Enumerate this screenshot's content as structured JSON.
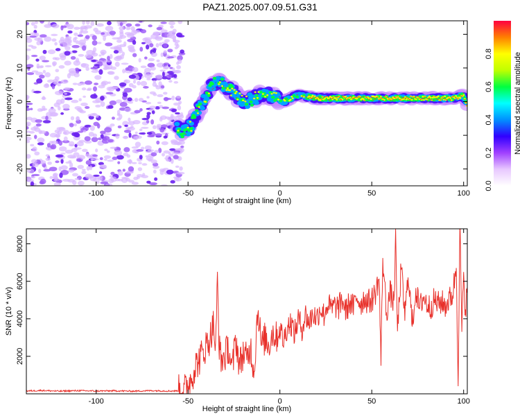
{
  "title": "PAZ1.2025.007.09.51.G31",
  "chart_data": [
    {
      "type": "heatmap",
      "xlabel": "Height of straight line (km)",
      "ylabel": "Frequency (Hz)",
      "xlim": [
        -138,
        102
      ],
      "ylim": [
        -25,
        24
      ],
      "xticks": [
        -100,
        -50,
        0,
        50,
        100
      ],
      "yticks": [
        -20,
        -10,
        0,
        10,
        20
      ],
      "colorbar": {
        "label": "Normalized spectral amplitude",
        "range": [
          0,
          1
        ],
        "ticks": [
          0.0,
          0.2,
          0.4,
          0.6,
          0.8
        ],
        "tick_labels": [
          "0.0",
          "0.2",
          "0.4",
          "0.6",
          "0.8"
        ],
        "colors": [
          "#ffffff",
          "#e8c8ff",
          "#a040ff",
          "#3000ff",
          "#0090ff",
          "#00ffff",
          "#00ff40",
          "#c0ff00",
          "#ffff00",
          "#ff8000",
          "#ff0040"
        ]
      },
      "ridge": {
        "x": [
          -56,
          -52,
          -48,
          -45,
          -42,
          -38,
          -34,
          -30,
          -26,
          -22,
          -18,
          -14,
          -10,
          -6,
          -2,
          2,
          6,
          10,
          20,
          30,
          40,
          50,
          60,
          70,
          80,
          90,
          95,
          100,
          102
        ],
        "y": [
          -8,
          -9,
          -7,
          -3,
          0,
          4,
          6,
          5,
          3,
          1,
          0,
          1,
          2,
          2,
          1,
          0,
          1,
          2,
          1,
          1,
          1,
          1,
          1,
          1,
          1,
          1,
          1,
          2,
          -1
        ]
      },
      "noise_region_x": [
        -138,
        -53
      ]
    },
    {
      "type": "line",
      "xlabel": "Height of straight line (km)",
      "ylabel": "SNR (10 * v/v)",
      "xlim": [
        -138,
        102
      ],
      "ylim": [
        0,
        8800
      ],
      "xticks": [
        -100,
        -50,
        0,
        50,
        100
      ],
      "yticks": [
        2000,
        4000,
        6000,
        8000
      ],
      "line_color": "#e8302a",
      "series": [
        {
          "name": "",
          "x": [
            -138,
            -130,
            -120,
            -110,
            -100,
            -90,
            -80,
            -70,
            -60,
            -55,
            -52,
            -50,
            -48,
            -46,
            -44,
            -42,
            -40,
            -38,
            -36,
            -35,
            -34,
            -33,
            -32,
            -30,
            -28,
            -26,
            -24,
            -22,
            -20,
            -18,
            -16,
            -14,
            -12,
            -10,
            -8,
            -6,
            -4,
            -2,
            0,
            2,
            4,
            6,
            8,
            10,
            12,
            14,
            16,
            18,
            20,
            22,
            24,
            26,
            28,
            30,
            32,
            34,
            36,
            38,
            40,
            42,
            44,
            46,
            48,
            50,
            52,
            54,
            55,
            56,
            58,
            60,
            62,
            63,
            64,
            66,
            68,
            70,
            72,
            74,
            76,
            78,
            80,
            82,
            84,
            86,
            88,
            90,
            92,
            94,
            96,
            97,
            98,
            99,
            100,
            101,
            102
          ],
          "values": [
            150,
            180,
            140,
            170,
            150,
            160,
            140,
            170,
            150,
            160,
            200,
            500,
            900,
            1500,
            1800,
            2200,
            2600,
            3000,
            3800,
            2000,
            6200,
            2500,
            1800,
            2000,
            2500,
            1200,
            3000,
            1500,
            2200,
            1800,
            2500,
            1200,
            4700,
            2500,
            3000,
            2600,
            3300,
            3000,
            3500,
            2800,
            3600,
            3800,
            3200,
            4000,
            3500,
            4200,
            3800,
            4300,
            4000,
            4600,
            4200,
            4800,
            4500,
            4700,
            4600,
            5000,
            4400,
            4900,
            4600,
            5200,
            4800,
            5100,
            4900,
            5000,
            5400,
            6200,
            1700,
            7200,
            4300,
            5400,
            4800,
            8100,
            3300,
            6700,
            4200,
            6400,
            3600,
            5600,
            4500,
            5200,
            4800,
            4600,
            5000,
            4800,
            4900,
            4700,
            5000,
            5300,
            6800,
            1000,
            8800,
            3500,
            6000,
            4500,
            5700
          ]
        }
      ]
    }
  ]
}
